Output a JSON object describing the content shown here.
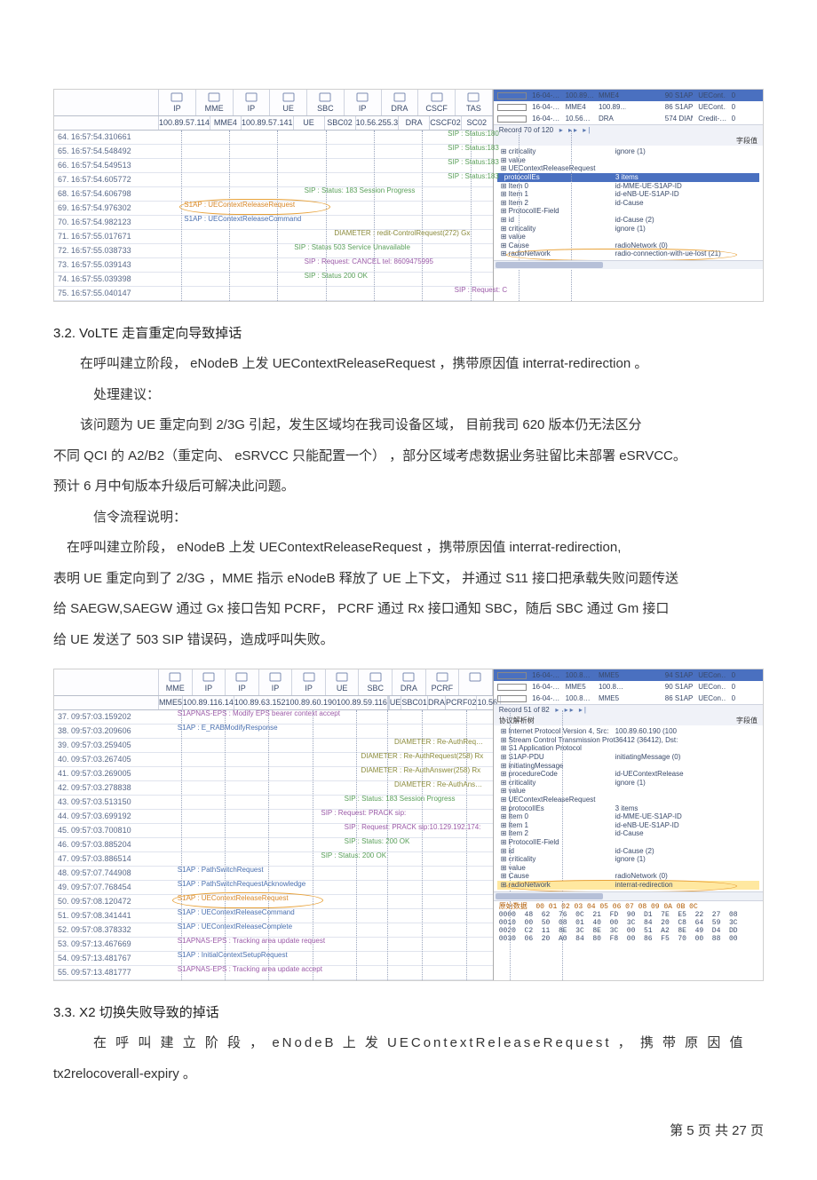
{
  "sshot1": {
    "headers_top": [
      "IP",
      "MME",
      "IP",
      "UE",
      "SBC",
      "IP",
      "DRA",
      "CSCF",
      "TAS"
    ],
    "headers_bot": [
      "100.89.57.114",
      "MME4",
      "100.89.57.141",
      "UE",
      "SBC02",
      "10.56.255.3",
      "DRA",
      "CSCF02",
      "SC02"
    ],
    "rows": [
      {
        "idx": "64. 16:57:54.310661",
        "msgs": [
          {
            "t": "SIP : Status:180",
            "c": "green",
            "x": 86
          }
        ]
      },
      {
        "idx": "65. 16:57:54.548492",
        "msgs": [
          {
            "t": "SIP : Status:183",
            "c": "green",
            "x": 86
          }
        ]
      },
      {
        "idx": "66. 16:57:54.549513",
        "msgs": [
          {
            "t": "SIP : Status:183",
            "c": "green",
            "x": 86
          }
        ]
      },
      {
        "idx": "67. 16:57:54.605772",
        "msgs": [
          {
            "t": "SIP : Status:183",
            "c": "green",
            "x": 86
          }
        ]
      },
      {
        "idx": "68. 16:57:54.606798",
        "msgs": [
          {
            "t": "SIP : Status: 183 Session Progress",
            "c": "green",
            "x": 43
          }
        ]
      },
      {
        "idx": "69. 16:57:54.976302",
        "msgs": [
          {
            "t": "S1AP : UEContextReleaseRequest",
            "c": "orange",
            "x": 7,
            "circ": true
          }
        ]
      },
      {
        "idx": "70. 16:57:54.982123",
        "msgs": [
          {
            "t": "S1AP : UEContextReleaseCommand",
            "c": "blue",
            "x": 7
          }
        ]
      },
      {
        "idx": "71. 16:57:55.017671",
        "msgs": [
          {
            "t": "DIAMETER : redit-ControlRequest(272) Gx",
            "c": "olive",
            "x": 52
          }
        ]
      },
      {
        "idx": "72. 16:57:55.038733",
        "msgs": [
          {
            "t": "SIP : Status 503 Service Unavailable",
            "c": "green",
            "x": 40
          }
        ]
      },
      {
        "idx": "73. 16:57:55.039143",
        "msgs": [
          {
            "t": "SIP : Request: CANCEL tel: 8609475995",
            "c": "purple",
            "x": 43
          }
        ]
      },
      {
        "idx": "74. 16:57:55.039398",
        "msgs": [
          {
            "t": "SIP : Status 200 OK",
            "c": "green",
            "x": 43
          }
        ]
      },
      {
        "idx": "75. 16:57:55.040147",
        "msgs": [
          {
            "t": "SIP : Request: C",
            "c": "purple",
            "x": 88
          }
        ]
      }
    ],
    "vlines": [
      5,
      16,
      27,
      38,
      49,
      60,
      71,
      82,
      94
    ],
    "right_list": [
      [
        "16-04-…",
        "100.89…",
        "MME4",
        "",
        "90 S1AP",
        "UECont…",
        "0"
      ],
      [
        "16-04-…",
        "MME4",
        "100.89…",
        "",
        "86 S1AP",
        "UECont…",
        "0"
      ],
      [
        "16-04-…",
        "10.56…",
        "DRA",
        "",
        "574 DIAME…",
        "Credit-…",
        "0"
      ]
    ],
    "right_nav": "Record 70 of 120",
    "tree_hdr": [
      "",
      "字段值"
    ],
    "tree": [
      {
        "k": "criticality",
        "v": "ignore (1)",
        "i": 0
      },
      {
        "k": "value",
        "v": "",
        "i": 0
      },
      {
        "k": "UEContextReleaseRequest",
        "v": "",
        "i": 1
      },
      {
        "k": "protocolIEs",
        "v": "3 items",
        "i": 2,
        "bar": true
      },
      {
        "k": "Item 0",
        "v": "id-MME-UE-S1AP-ID",
        "i": 3
      },
      {
        "k": "Item 1",
        "v": "id-eNB-UE-S1AP-ID",
        "i": 3
      },
      {
        "k": "Item 2",
        "v": "id-Cause",
        "i": 3
      },
      {
        "k": "ProtocolIE-Field",
        "v": "",
        "i": 4
      },
      {
        "k": "id",
        "v": "id-Cause (2)",
        "i": 5
      },
      {
        "k": "criticality",
        "v": "ignore (1)",
        "i": 5
      },
      {
        "k": "value",
        "v": "",
        "i": 5
      },
      {
        "k": "Cause",
        "v": "radioNetwork (0)",
        "i": 6
      },
      {
        "k": "radioNetwork",
        "v": "radio-connection-with-ue-lost (21)",
        "i": 7,
        "circ": true
      }
    ]
  },
  "sec32_title": "3.2.    VoLTE 走盲重定向导致掉话",
  "p1": "在呼叫建立阶段，  eNodeB 上发 UEContextReleaseRequest   ，携带原因值   interrat-redirection          。",
  "p2": "处理建议：",
  "p3": "该问题为  UE 重定向到  2/3G 引起，发生区域均在我司设备区域，      目前我司   620 版本仍无法区分",
  "p4": "不同 QCI 的 A2/B2（重定向、 eSRVCC 只能配置一个） ，部分区域考虑数据业务驻留比未部署    eSRVCC。",
  "p5": "预计 6 月中旬版本升级后可解决此问题。",
  "p6": "信令流程说明：",
  "p7": "在呼叫建立阶段，  eNodeB  上发 UEContextReleaseRequest        ，携带原因值     interrat-redirection,",
  "p8": "表明 UE 重定向到了 2/3G ，MME 指示 eNodeB 释放了 UE 上下文，  并通过 S11 接口把承载失败问题传送",
  "p9": "给 SAEGW,SAEGW 通过 Gx 接口告知 PCRF，  PCRF 通过 Rx 接口通知 SBC，随后 SBC 通过 Gm 接口",
  "p10": "给 UE 发送了 503 SIP 错误码，造成呼叫失败。",
  "sshot2": {
    "headers_top": [
      "MME",
      "IP",
      "IP",
      "IP",
      "IP",
      "UE",
      "SBC",
      "DRA",
      "PCRF",
      ""
    ],
    "headers_bot": [
      "MME5",
      "100.89.116.14",
      "100.89.63.152100.89.60.190100.89.59.116",
      "",
      "",
      "UE",
      "SBC01",
      "DRA",
      "PCRF02",
      "10.56."
    ],
    "rows": [
      {
        "idx": "37. 09:57:03.159202",
        "msgs": [
          {
            "t": "S1APNAS-EPS : Modify EPS bearer context accept",
            "c": "purple",
            "x": 5
          }
        ]
      },
      {
        "idx": "38. 09:57:03.209606",
        "msgs": [
          {
            "t": "S1AP : E_RABModifyResponse",
            "c": "blue",
            "x": 5
          }
        ]
      },
      {
        "idx": "39. 09:57:03.259405",
        "msgs": [
          {
            "t": "DIAMETER : Re-AuthReq…",
            "c": "olive",
            "x": 70
          }
        ]
      },
      {
        "idx": "40. 09:57:03.267405",
        "msgs": [
          {
            "t": "DIAMETER : Re-AuthRequest(258) Rx",
            "c": "olive",
            "x": 60
          }
        ]
      },
      {
        "idx": "41. 09:57:03.269005",
        "msgs": [
          {
            "t": "DIAMETER : Re-AuthAnswer(258) Rx",
            "c": "olive",
            "x": 60
          }
        ]
      },
      {
        "idx": "42. 09:57:03.278838",
        "msgs": [
          {
            "t": "DIAMETER : Re-AuthAns…",
            "c": "olive",
            "x": 70
          }
        ]
      },
      {
        "idx": "43. 09:57:03.513150",
        "msgs": [
          {
            "t": "SIP : Status: 183 Session Progress",
            "c": "green",
            "x": 55
          }
        ]
      },
      {
        "idx": "44. 09:57:03.699192",
        "msgs": [
          {
            "t": "SIP : Request: PRACK sip:",
            "c": "purple",
            "x": 48
          }
        ]
      },
      {
        "idx": "45. 09:57:03.700810",
        "msgs": [
          {
            "t": "SIP : Request: PRACK sip:10.129.192.174:",
            "c": "purple",
            "x": 55
          }
        ]
      },
      {
        "idx": "46. 09:57:03.885204",
        "msgs": [
          {
            "t": "SIP : Status: 200 OK",
            "c": "green",
            "x": 55
          }
        ]
      },
      {
        "idx": "47. 09:57:03.886514",
        "msgs": [
          {
            "t": "SIP : Status: 200 OK",
            "c": "green",
            "x": 48
          }
        ]
      },
      {
        "idx": "48. 09:57:07.744908",
        "msgs": [
          {
            "t": "S1AP : PathSwitchRequest",
            "c": "blue",
            "x": 5
          }
        ]
      },
      {
        "idx": "49. 09:57:07.768454",
        "msgs": [
          {
            "t": "S1AP : PathSwitchRequestAcknowledge",
            "c": "blue",
            "x": 5
          }
        ]
      },
      {
        "idx": "50. 09:57:08.120472",
        "msgs": [
          {
            "t": "S1AP : UEContextReleaseRequest",
            "c": "orange",
            "x": 5,
            "circ": true
          }
        ]
      },
      {
        "idx": "51. 09:57:08.341441",
        "msgs": [
          {
            "t": "S1AP : UEContextReleaseCommand",
            "c": "blue",
            "x": 5
          }
        ]
      },
      {
        "idx": "52. 09:57:08.378332",
        "msgs": [
          {
            "t": "S1AP : UEContextReleaseComplete",
            "c": "blue",
            "x": 5
          }
        ]
      },
      {
        "idx": "53. 09:57:13.467669",
        "msgs": [
          {
            "t": "S1APNAS-EPS : Tracking area update request",
            "c": "purple",
            "x": 5
          }
        ]
      },
      {
        "idx": "54. 09:57:13.481767",
        "msgs": [
          {
            "t": "S1AP : InitialContextSetupRequest",
            "c": "blue",
            "x": 5
          }
        ]
      },
      {
        "idx": "55. 09:57:13.481777",
        "msgs": [
          {
            "t": "S1APNAS-EPS : Tracking area update accept",
            "c": "purple",
            "x": 5
          }
        ]
      }
    ],
    "vlines": [
      5,
      15,
      25,
      35,
      45,
      52,
      60,
      70,
      80,
      92
    ],
    "right_list": [
      [
        "16-04-…",
        "100.8…",
        "MME5",
        "",
        "94 S1AP",
        "UECon…",
        "0"
      ],
      [
        "16-04-…",
        "MME5",
        "100.8…",
        "",
        "90 S1AP",
        "UECon…",
        "0"
      ],
      [
        "16-04-…",
        "100.8…",
        "MME5",
        "",
        "86 S1AP",
        "UECon…",
        "0"
      ]
    ],
    "right_nav": "Record 51 of 82",
    "tree_hdr": [
      "协议解析树",
      "字段值"
    ],
    "tree": [
      {
        "k": "Internet Protocol Version 4, Src:",
        "v": "100.89.60.190 (100",
        "i": 0
      },
      {
        "k": "Stream Control Transmission Protocol, Src Port",
        "v": "36412 (36412), Dst:",
        "i": 0
      },
      {
        "k": "S1 Application Protocol",
        "v": "",
        "i": 0
      },
      {
        "k": "S1AP-PDU",
        "v": "initiatingMessage (0)",
        "i": 1
      },
      {
        "k": "initiatingMessage",
        "v": "",
        "i": 2
      },
      {
        "k": "procedureCode",
        "v": "id-UEContextRelease",
        "i": 3
      },
      {
        "k": "criticality",
        "v": "ignore (1)",
        "i": 3
      },
      {
        "k": "value",
        "v": "",
        "i": 3
      },
      {
        "k": "UEContextReleaseRequest",
        "v": "",
        "i": 4
      },
      {
        "k": "protocolIEs",
        "v": "3 items",
        "i": 5
      },
      {
        "k": "Item 0",
        "v": "id-MME-UE-S1AP-ID",
        "i": 6
      },
      {
        "k": "Item 1",
        "v": "id-eNB-UE-S1AP-ID",
        "i": 6
      },
      {
        "k": "Item 2",
        "v": "id-Cause",
        "i": 6
      },
      {
        "k": "ProtocolIE-Field",
        "v": "",
        "i": 7
      },
      {
        "k": "id",
        "v": "id-Cause (2)",
        "i": 8
      },
      {
        "k": "criticality",
        "v": "ignore (1)",
        "i": 8
      },
      {
        "k": "value",
        "v": "",
        "i": 8
      },
      {
        "k": "Cause",
        "v": "radioNetwork (0)",
        "i": 9
      },
      {
        "k": "radioNetwork",
        "v": "interrat-redirection",
        "i": 10,
        "hl": true,
        "circ": true
      }
    ],
    "hex_hdr": "原始数据  00 01 02 03 04 05 06 07 08 09 0A 0B 0C",
    "hex": "0000  48  62  76  0C  21  FD  90  D1  7E  E5  22  27  08\n0010  00  50  08  01  40  00  3C  84  20  C8  64  59  3C\n0020  C2  11  8E  3C  8E  3C  00  51  A2  8E  49  D4  DD\n0030  06  20  A0  84  80  F8  00  86  F5  70  00  88  00"
  },
  "sec33_title": "3.3.    X2 切换失败导致的掉话",
  "p11": "在 呼 叫 建 立 阶 段 ， eNodeB   上 发   UEContextReleaseRequest    ， 携 带 原 因 值",
  "p12": "tx2relocoverall-expiry          。",
  "footer_label": "第 5  页 共 27  页"
}
